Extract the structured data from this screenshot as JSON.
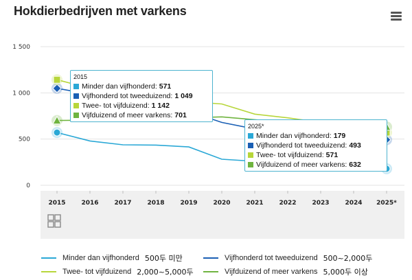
{
  "title": "Hokdierbedrijven met varkens",
  "menu_icon": "hamburger-menu-icon",
  "source_icon": "cbs-logo-icon",
  "chart_data": {
    "type": "line",
    "title": "Hokdierbedrijven met varkens",
    "categories": [
      "2015",
      "2016",
      "2017",
      "2018",
      "2019",
      "2020",
      "2021",
      "2022",
      "2023",
      "2024",
      "2025*"
    ],
    "ylim": [
      0,
      1500
    ],
    "yticks": [
      "0",
      "500",
      "1 000",
      "1 500"
    ],
    "grid": true,
    "legend_position": "bottom",
    "series": [
      {
        "name": "Minder dan vijfhonderd",
        "color": "#2aa8d6",
        "values": [
          571,
          480,
          438,
          435,
          415,
          282,
          260,
          248,
          220,
          200,
          179
        ]
      },
      {
        "name": "Vijfhonderd tot tweeduizend",
        "color": "#1a5fb4",
        "values": [
          1049,
          985,
          930,
          880,
          800,
          680,
          610,
          570,
          530,
          510,
          493
        ]
      },
      {
        "name": "Twee- tot vijfduizend",
        "color": "#b7d63a",
        "values": [
          1142,
          1050,
          990,
          950,
          905,
          880,
          770,
          730,
          680,
          620,
          571
        ]
      },
      {
        "name": "Vijfduizend of meer varkens",
        "color": "#6fb43f",
        "values": [
          701,
          705,
          715,
          720,
          730,
          740,
          710,
          680,
          660,
          645,
          632
        ]
      }
    ],
    "tooltips": [
      {
        "year": "2015",
        "rows": [
          {
            "label": "Minder dan vijfhonderd:",
            "value": "571",
            "color": "#2aa8d6"
          },
          {
            "label": "Vijfhonderd tot tweeduizend:",
            "value": "1 049",
            "color": "#1a5fb4"
          },
          {
            "label": "Twee- tot vijfduizend:",
            "value": "1 142",
            "color": "#b7d63a"
          },
          {
            "label": "Vijfduizend of meer varkens:",
            "value": "701",
            "color": "#6fb43f"
          }
        ]
      },
      {
        "year": "2025*",
        "rows": [
          {
            "label": "Minder dan vijfhonderd:",
            "value": "179",
            "color": "#2aa8d6"
          },
          {
            "label": "Vijfhonderd tot tweeduizend:",
            "value": "493",
            "color": "#1a5fb4"
          },
          {
            "label": "Twee- tot vijfduizend:",
            "value": "571",
            "color": "#b7d63a"
          },
          {
            "label": "Vijfduizend of meer varkens:",
            "value": "632",
            "color": "#6fb43f"
          }
        ]
      }
    ]
  },
  "legend": [
    {
      "label": "Minder dan vijfhonderd",
      "extra": "500두 미만",
      "color": "#2aa8d6"
    },
    {
      "label": "Vijfhonderd tot tweeduizend",
      "extra": "500~2,000두",
      "color": "#1a5fb4"
    },
    {
      "label": "Twee- tot vijfduizend",
      "extra": "2,000~5,000두",
      "color": "#b7d63a"
    },
    {
      "label": "Vijfduizend of meer varkens",
      "extra": "5,000두 이상",
      "color": "#6fb43f"
    }
  ]
}
